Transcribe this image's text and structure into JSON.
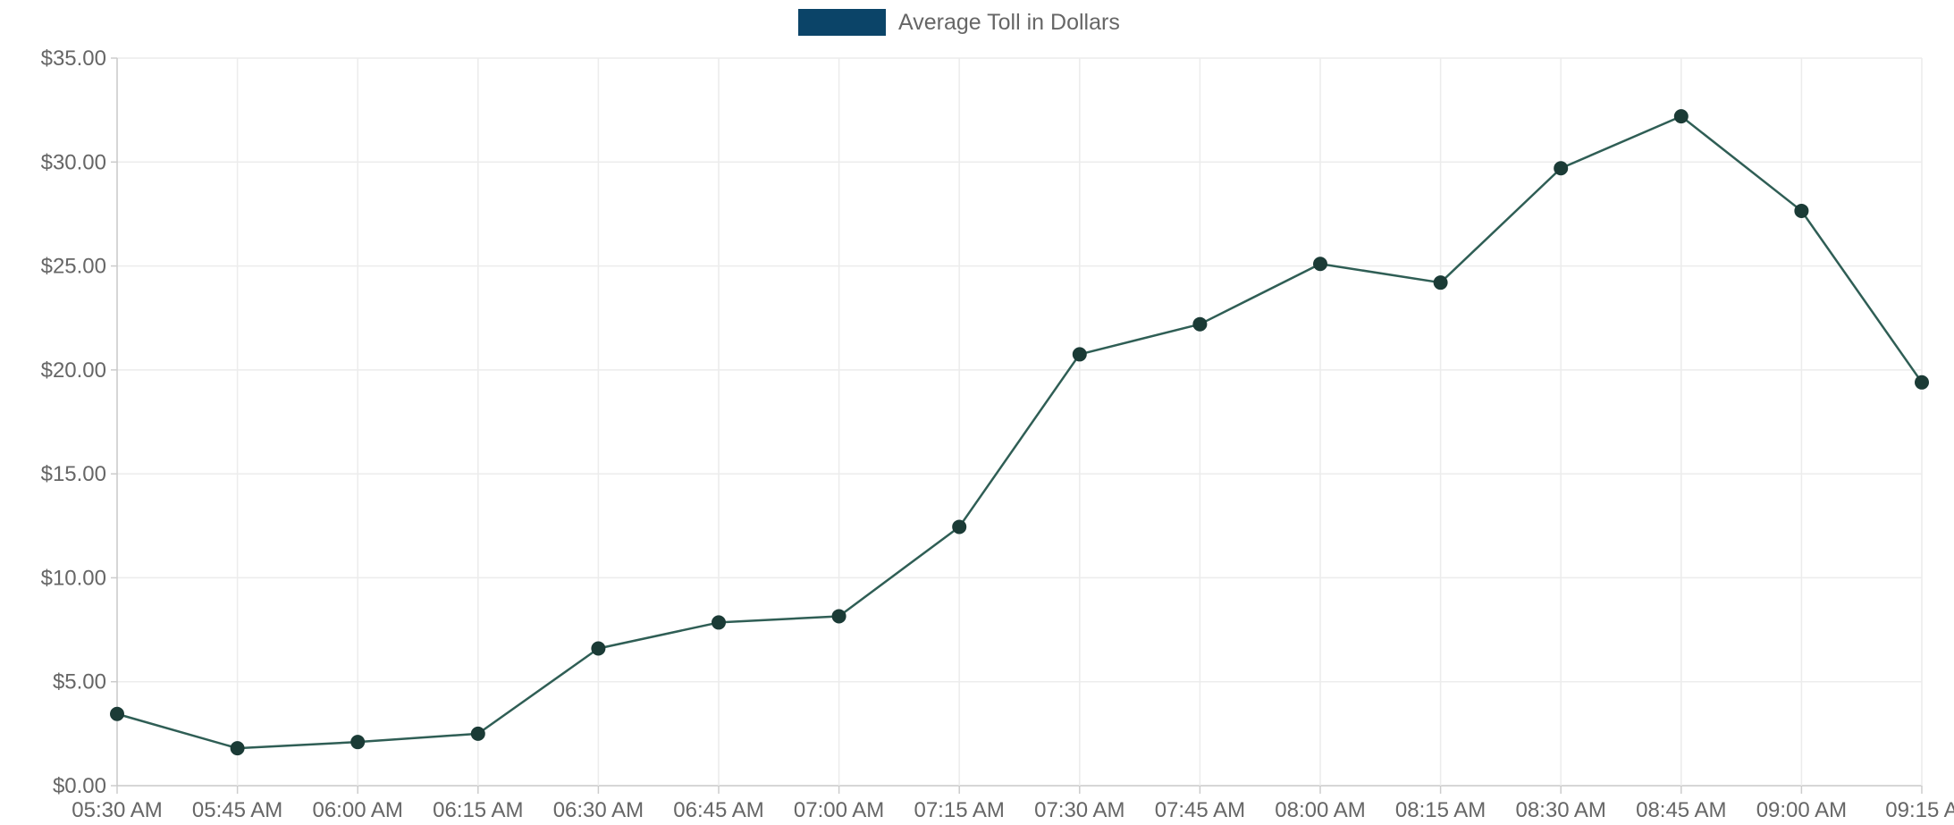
{
  "chart_data": {
    "type": "line",
    "legend": {
      "position": "top-center"
    },
    "series": [
      {
        "name": "Average Toll in Dollars",
        "color": "#0b4468",
        "line_color": "#2f5e55",
        "point_color": "#1b3b36",
        "values": [
          3.45,
          1.8,
          2.1,
          2.5,
          6.6,
          7.85,
          8.15,
          12.45,
          20.75,
          22.2,
          25.1,
          24.2,
          29.7,
          32.2,
          27.65,
          19.4
        ]
      }
    ],
    "categories": [
      "05:30 AM",
      "05:45 AM",
      "06:00 AM",
      "06:15 AM",
      "06:30 AM",
      "06:45 AM",
      "07:00 AM",
      "07:15 AM",
      "07:30 AM",
      "07:45 AM",
      "08:00 AM",
      "08:15 AM",
      "08:30 AM",
      "08:45 AM",
      "09:00 AM",
      "09:15 A"
    ],
    "yticks": [
      "$0.00",
      "$5.00",
      "$10.00",
      "$15.00",
      "$20.00",
      "$25.00",
      "$30.00",
      "$35.00"
    ],
    "ylim": [
      0,
      35
    ],
    "grid": true
  }
}
